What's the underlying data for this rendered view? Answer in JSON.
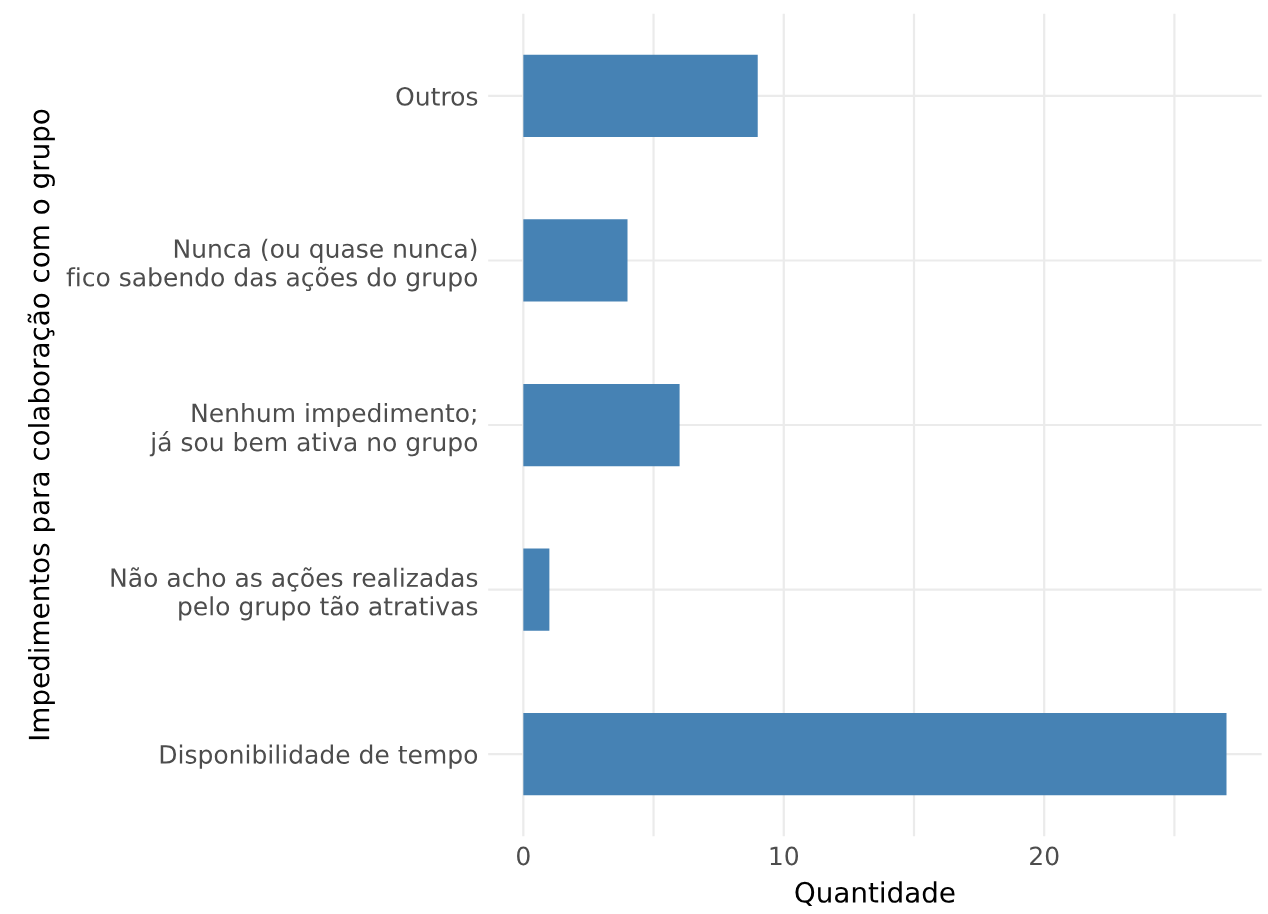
{
  "chart_data": {
    "type": "bar",
    "orientation": "horizontal",
    "xlabel": "Quantidade",
    "ylabel": "Impedimentos para colaboração com o grupo",
    "categories": [
      "Outros",
      "Nunca (ou quase nunca)\nfico sabendo das ações do grupo",
      "Nenhum impedimento;\njá sou bem ativa no grupo",
      "Não acho as ações realizadas\npelo grupo tão atrativas",
      "Disponibilidade de tempo"
    ],
    "values": [
      9,
      4,
      6,
      1,
      27
    ],
    "color": "#4682b4",
    "xlim": [
      -1.35,
      28.35
    ],
    "xticks": [
      0,
      {
        "value": 5,
        "label": null
      },
      10,
      {
        "value": 15,
        "label": null
      },
      20,
      {
        "value": 25,
        "label": null
      }
    ],
    "grid": true,
    "legend": false
  }
}
